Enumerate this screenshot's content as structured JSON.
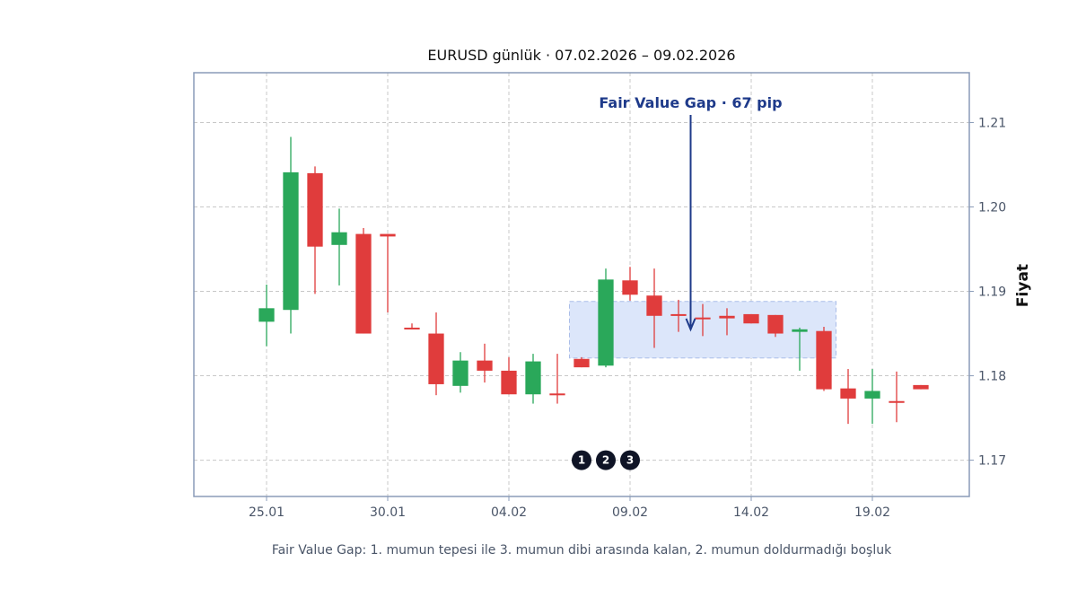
{
  "chart_data": {
    "type": "candlestick",
    "title": "EURUSD günlük · 07.02.2026 – 09.02.2026",
    "ylabel": "Fiyat",
    "xlabel": "",
    "caption": "Fair Value Gap: 1. mumun tepesi ile 3. mumun dibi arasında kalan, 2. mumun doldurmadığı boşluk",
    "x_ticks": [
      "25.01",
      "30.01",
      "04.02",
      "09.02",
      "14.02",
      "19.02"
    ],
    "y_ticks": [
      "1.17",
      "1.18",
      "1.19",
      "1.20",
      "1.21"
    ],
    "ylim": [
      1.1657,
      1.2159
    ],
    "xlim": [
      "22.01",
      "23.02"
    ],
    "grid": true,
    "up_color": "#2aa85a",
    "down_color": "#e03c3c",
    "candles": [
      {
        "date": "25.01",
        "open": 1.1864,
        "high": 1.1908,
        "low": 1.1835,
        "close": 1.188
      },
      {
        "date": "26.01",
        "open": 1.1878,
        "high": 1.2083,
        "low": 1.185,
        "close": 1.2041
      },
      {
        "date": "27.01",
        "open": 1.204,
        "high": 1.2048,
        "low": 1.1897,
        "close": 1.1953
      },
      {
        "date": "28.01",
        "open": 1.1955,
        "high": 1.1998,
        "low": 1.1907,
        "close": 1.197
      },
      {
        "date": "29.01",
        "open": 1.1968,
        "high": 1.1975,
        "low": 1.185,
        "close": 1.185
      },
      {
        "date": "30.01",
        "open": 1.1968,
        "high": 1.1968,
        "low": 1.1875,
        "close": 1.1965
      },
      {
        "date": "31.01",
        "open": 1.1857,
        "high": 1.1862,
        "low": 1.1855,
        "close": 1.1855
      },
      {
        "date": "01.02",
        "open": 1.185,
        "high": 1.1875,
        "low": 1.1777,
        "close": 1.179
      },
      {
        "date": "02.02",
        "open": 1.1788,
        "high": 1.1828,
        "low": 1.178,
        "close": 1.1818
      },
      {
        "date": "03.02",
        "open": 1.1818,
        "high": 1.1838,
        "low": 1.1792,
        "close": 1.1806
      },
      {
        "date": "04.02",
        "open": 1.1806,
        "high": 1.1822,
        "low": 1.1778,
        "close": 1.1778
      },
      {
        "date": "05.02",
        "open": 1.1778,
        "high": 1.1826,
        "low": 1.1767,
        "close": 1.1817
      },
      {
        "date": "06.02",
        "open": 1.1779,
        "high": 1.1826,
        "low": 1.1767,
        "close": 1.1777
      },
      {
        "date": "07.02",
        "open": 1.182,
        "high": 1.1822,
        "low": 1.181,
        "close": 1.181
      },
      {
        "date": "08.02",
        "open": 1.1812,
        "high": 1.1927,
        "low": 1.181,
        "close": 1.1914
      },
      {
        "date": "09.02",
        "open": 1.1913,
        "high": 1.1929,
        "low": 1.1889,
        "close": 1.1896
      },
      {
        "date": "10.02",
        "open": 1.1895,
        "high": 1.1927,
        "low": 1.1833,
        "close": 1.1871
      },
      {
        "date": "11.02",
        "open": 1.1873,
        "high": 1.189,
        "low": 1.1852,
        "close": 1.1871
      },
      {
        "date": "12.02",
        "open": 1.1869,
        "high": 1.1885,
        "low": 1.1847,
        "close": 1.1868
      },
      {
        "date": "13.02",
        "open": 1.1871,
        "high": 1.188,
        "low": 1.1848,
        "close": 1.1868
      },
      {
        "date": "14.02",
        "open": 1.1873,
        "high": 1.1873,
        "low": 1.1862,
        "close": 1.1862
      },
      {
        "date": "15.02",
        "open": 1.1872,
        "high": 1.1872,
        "low": 1.1846,
        "close": 1.185
      },
      {
        "date": "16.02",
        "open": 1.1852,
        "high": 1.1857,
        "low": 1.1806,
        "close": 1.1855
      },
      {
        "date": "17.02",
        "open": 1.1853,
        "high": 1.1858,
        "low": 1.1782,
        "close": 1.1784
      },
      {
        "date": "18.02",
        "open": 1.1785,
        "high": 1.1808,
        "low": 1.1743,
        "close": 1.1773
      },
      {
        "date": "19.02",
        "open": 1.1773,
        "high": 1.1808,
        "low": 1.1743,
        "close": 1.1782
      },
      {
        "date": "20.02",
        "open": 1.177,
        "high": 1.1805,
        "low": 1.1745,
        "close": 1.1768
      },
      {
        "date": "21.02",
        "open": 1.1789,
        "high": 1.1789,
        "low": 1.1784,
        "close": 1.1784
      }
    ],
    "fvg_zone": {
      "from": "06.02",
      "to": "17.02",
      "low": 1.1821,
      "high": 1.1888,
      "fill": "#dce6fa"
    },
    "annotation": {
      "text": "Fair Value Gap · 67 pip",
      "target_date": "11.02",
      "target_value": 1.1856
    },
    "markers": [
      {
        "label": "1",
        "date": "07.02",
        "value": 1.17
      },
      {
        "label": "2",
        "date": "08.02",
        "value": 1.17
      },
      {
        "label": "3",
        "date": "09.02",
        "value": 1.17
      }
    ]
  }
}
